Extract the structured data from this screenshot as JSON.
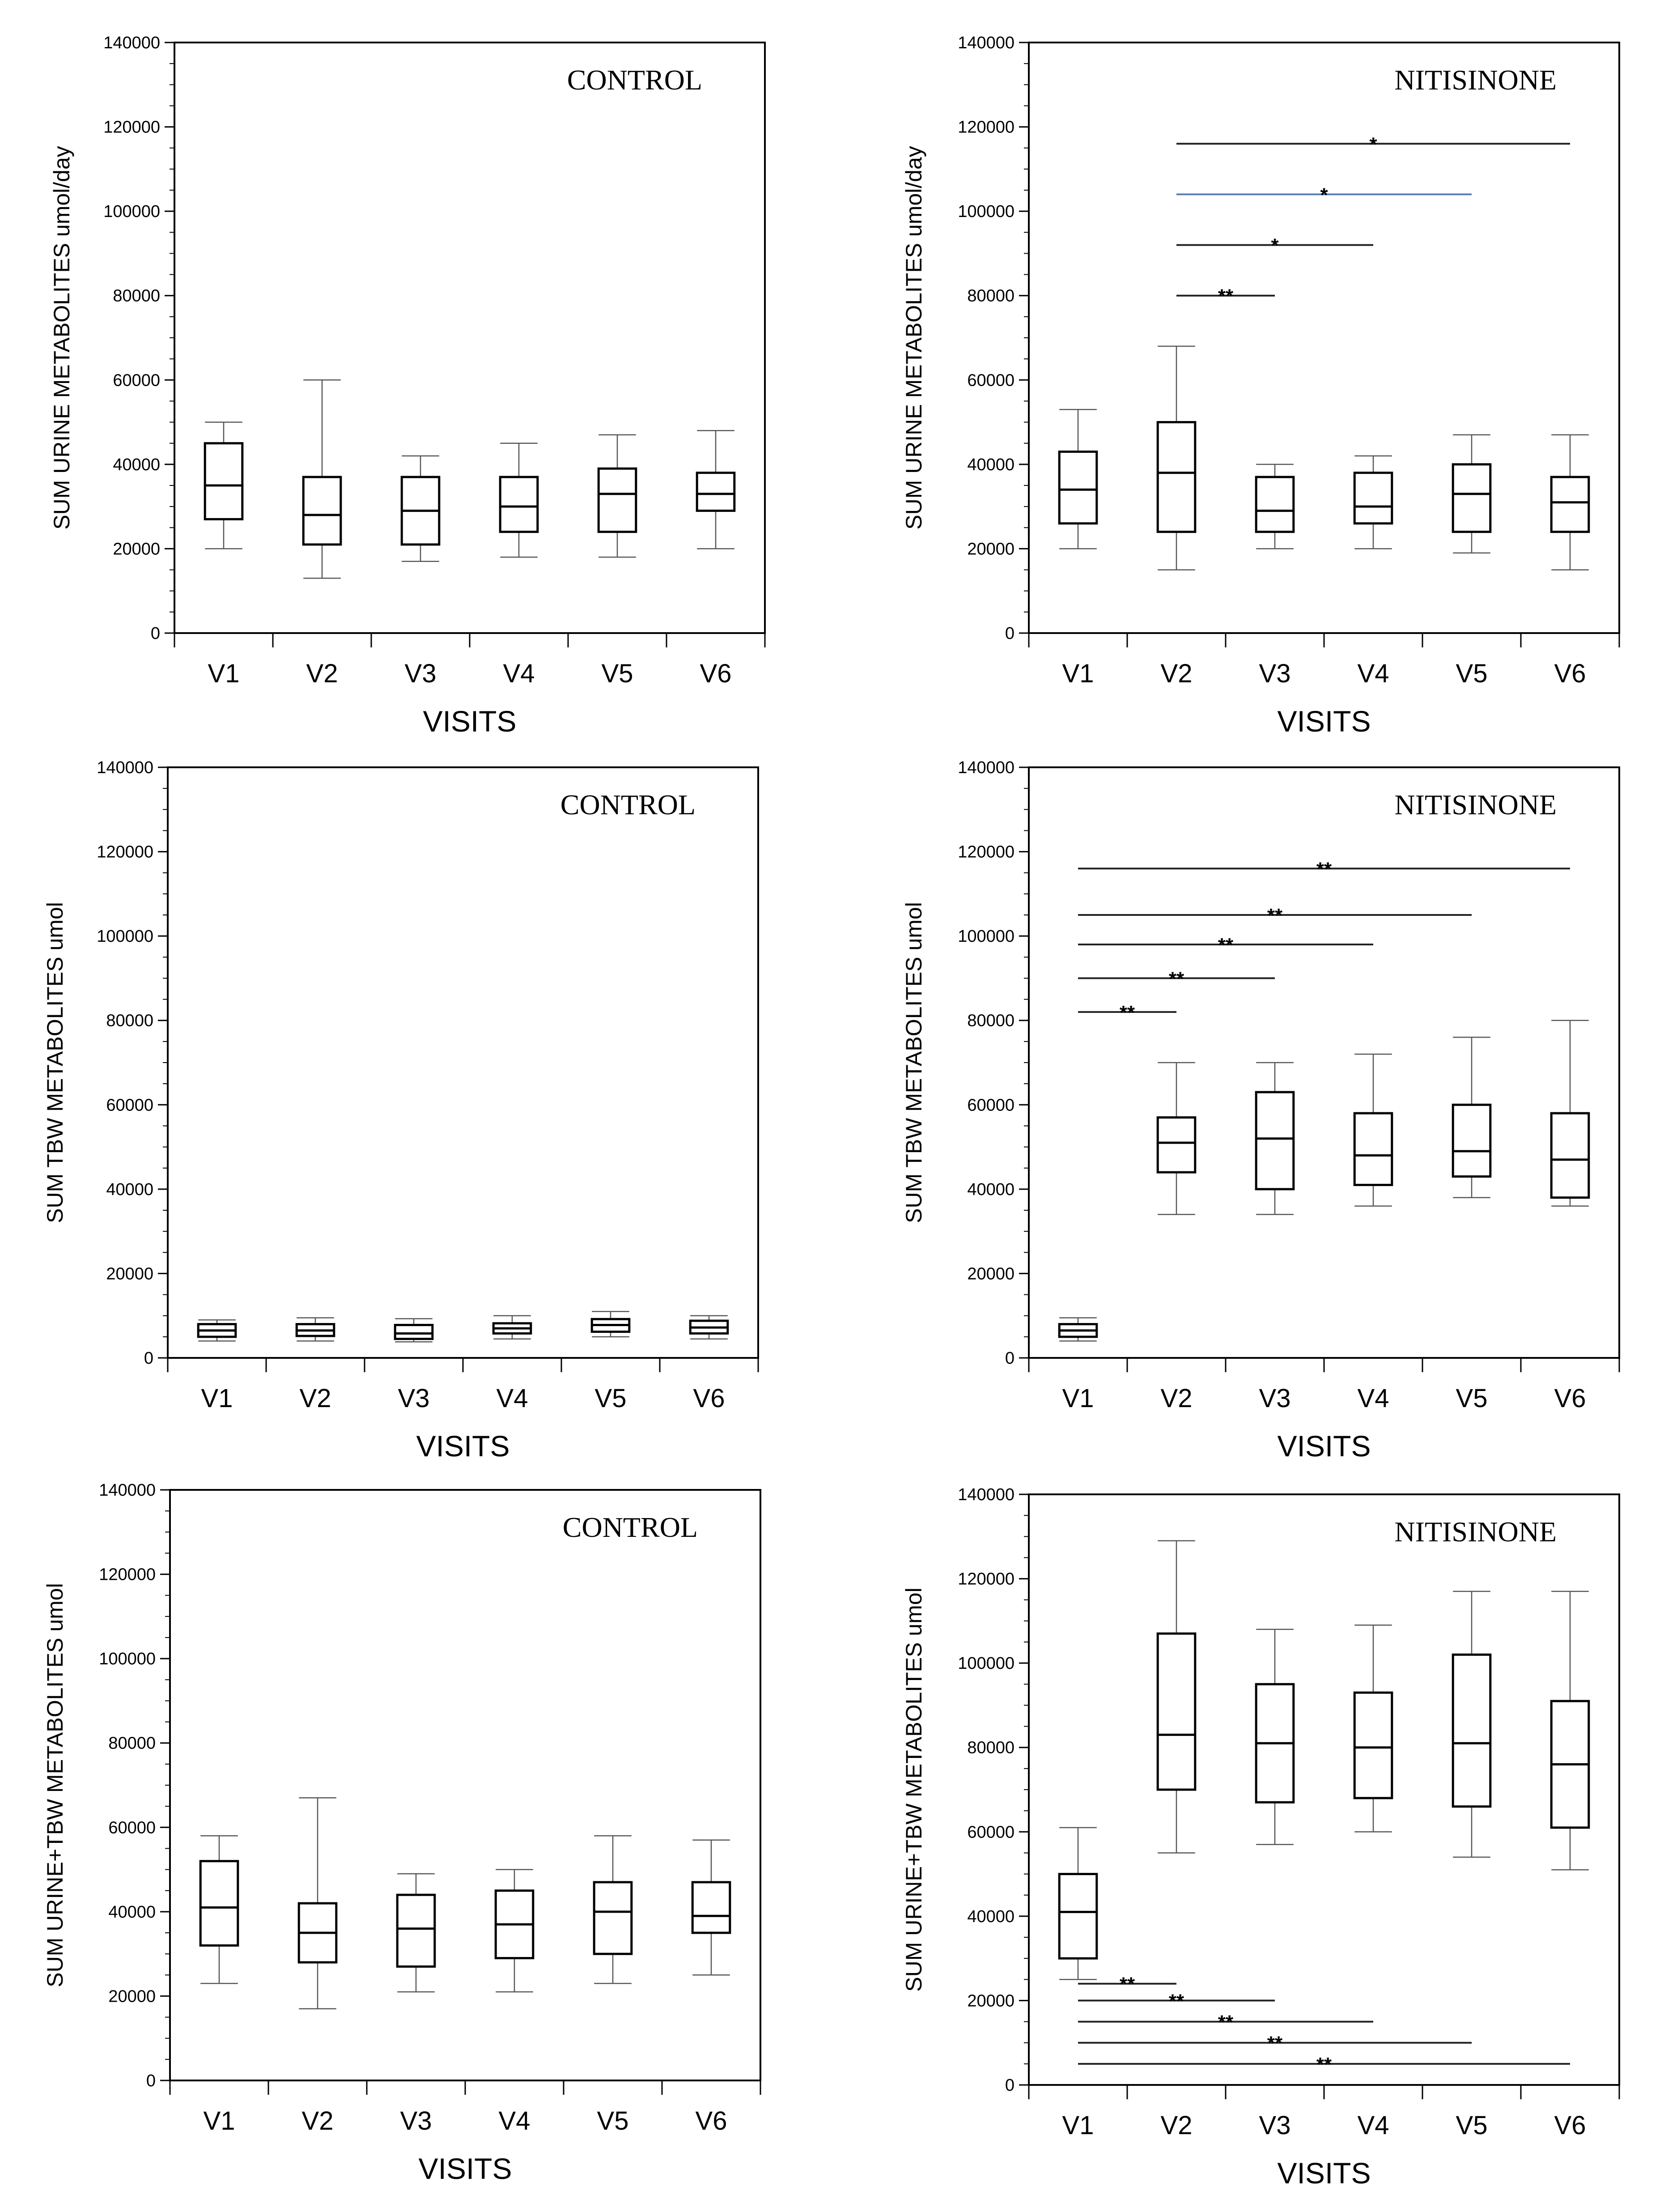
{
  "chart_data": [
    {
      "type": "boxplot",
      "title": "CONTROL",
      "xlabel": "VISITS",
      "ylabel": "SUM URINE METABOLITES  umol/day",
      "ylim": [
        0,
        140000
      ],
      "yticks": [
        "0",
        "20000",
        "40000",
        "60000",
        "80000",
        "100000",
        "120000",
        "140000"
      ],
      "categories": [
        "V1",
        "V2",
        "V3",
        "V4",
        "V5",
        "V6"
      ],
      "boxes": [
        {
          "min": 20000,
          "q1": 27000,
          "median": 35000,
          "q3": 45000,
          "max": 50000
        },
        {
          "min": 13000,
          "q1": 21000,
          "median": 28000,
          "q3": 37000,
          "max": 60000
        },
        {
          "min": 17000,
          "q1": 21000,
          "median": 29000,
          "q3": 37000,
          "max": 42000
        },
        {
          "min": 18000,
          "q1": 24000,
          "median": 30000,
          "q3": 37000,
          "max": 45000
        },
        {
          "min": 18000,
          "q1": 24000,
          "median": 33000,
          "q3": 39000,
          "max": 47000
        },
        {
          "min": 20000,
          "q1": 29000,
          "median": 33000,
          "q3": 38000,
          "max": 48000
        }
      ],
      "significance": []
    },
    {
      "type": "boxplot",
      "title": "NITISINONE",
      "xlabel": "VISITS",
      "ylabel": "SUM URINE METABOLITES  umol/day",
      "ylim": [
        0,
        140000
      ],
      "yticks": [
        "0",
        "20000",
        "40000",
        "60000",
        "80000",
        "100000",
        "120000",
        "140000"
      ],
      "categories": [
        "V1",
        "V2",
        "V3",
        "V4",
        "V5",
        "V6"
      ],
      "boxes": [
        {
          "min": 20000,
          "q1": 26000,
          "median": 34000,
          "q3": 43000,
          "max": 53000
        },
        {
          "min": 15000,
          "q1": 24000,
          "median": 38000,
          "q3": 50000,
          "max": 68000
        },
        {
          "min": 20000,
          "q1": 24000,
          "median": 29000,
          "q3": 37000,
          "max": 40000
        },
        {
          "min": 20000,
          "q1": 26000,
          "median": 30000,
          "q3": 38000,
          "max": 42000
        },
        {
          "min": 19000,
          "q1": 24000,
          "median": 33000,
          "q3": 40000,
          "max": 47000
        },
        {
          "min": 15000,
          "q1": 24000,
          "median": 31000,
          "q3": 37000,
          "max": 47000
        }
      ],
      "significance": [
        {
          "from": 1,
          "to": 5,
          "y": 116000,
          "label": "*",
          "color": "#222222"
        },
        {
          "from": 1,
          "to": 4,
          "y": 104000,
          "label": "*",
          "color": "#5a7fb0"
        },
        {
          "from": 1,
          "to": 3,
          "y": 92000,
          "label": "*",
          "color": "#222222"
        },
        {
          "from": 1,
          "to": 2,
          "y": 80000,
          "label": "**",
          "color": "#222222"
        }
      ]
    },
    {
      "type": "boxplot",
      "title": "CONTROL",
      "xlabel": "VISITS",
      "ylabel": "SUM TBW METABOLITES  umol",
      "ylim": [
        0,
        140000
      ],
      "yticks": [
        "0",
        "20000",
        "40000",
        "60000",
        "80000",
        "100000",
        "120000",
        "140000"
      ],
      "categories": [
        "V1",
        "V2",
        "V3",
        "V4",
        "V5",
        "V6"
      ],
      "boxes": [
        {
          "min": 4000,
          "q1": 5000,
          "median": 6500,
          "q3": 8000,
          "max": 9000
        },
        {
          "min": 4000,
          "q1": 5200,
          "median": 6500,
          "q3": 8000,
          "max": 9500
        },
        {
          "min": 3800,
          "q1": 4500,
          "median": 5800,
          "q3": 7800,
          "max": 9300
        },
        {
          "min": 4500,
          "q1": 5800,
          "median": 7000,
          "q3": 8200,
          "max": 10000
        },
        {
          "min": 5000,
          "q1": 6200,
          "median": 7800,
          "q3": 9200,
          "max": 11000
        },
        {
          "min": 4500,
          "q1": 5800,
          "median": 7200,
          "q3": 8800,
          "max": 10000
        }
      ],
      "significance": []
    },
    {
      "type": "boxplot",
      "title": "NITISINONE",
      "xlabel": "VISITS",
      "ylabel": "SUM TBW METABOLITES  umol",
      "ylim": [
        0,
        140000
      ],
      "yticks": [
        "0",
        "20000",
        "40000",
        "60000",
        "80000",
        "100000",
        "120000",
        "140000"
      ],
      "categories": [
        "V1",
        "V2",
        "V3",
        "V4",
        "V5",
        "V6"
      ],
      "boxes": [
        {
          "min": 4000,
          "q1": 5000,
          "median": 6500,
          "q3": 8000,
          "max": 9500
        },
        {
          "min": 34000,
          "q1": 44000,
          "median": 51000,
          "q3": 57000,
          "max": 70000
        },
        {
          "min": 34000,
          "q1": 40000,
          "median": 52000,
          "q3": 63000,
          "max": 70000
        },
        {
          "min": 36000,
          "q1": 41000,
          "median": 48000,
          "q3": 58000,
          "max": 72000
        },
        {
          "min": 38000,
          "q1": 43000,
          "median": 49000,
          "q3": 60000,
          "max": 76000
        },
        {
          "min": 36000,
          "q1": 38000,
          "median": 47000,
          "q3": 58000,
          "max": 80000
        }
      ],
      "significance": [
        {
          "from": 0,
          "to": 5,
          "y": 116000,
          "label": "**",
          "color": "#222222"
        },
        {
          "from": 0,
          "to": 4,
          "y": 105000,
          "label": "**",
          "color": "#222222"
        },
        {
          "from": 0,
          "to": 3,
          "y": 98000,
          "label": "**",
          "color": "#222222"
        },
        {
          "from": 0,
          "to": 2,
          "y": 90000,
          "label": "**",
          "color": "#222222"
        },
        {
          "from": 0,
          "to": 1,
          "y": 82000,
          "label": "**",
          "color": "#222222"
        }
      ]
    },
    {
      "type": "boxplot",
      "title": "CONTROL",
      "xlabel": "VISITS",
      "ylabel": "SUM URINE+TBW METABOLITES  umol",
      "ylim": [
        0,
        140000
      ],
      "yticks": [
        "0",
        "20000",
        "40000",
        "60000",
        "80000",
        "100000",
        "120000",
        "140000"
      ],
      "categories": [
        "V1",
        "V2",
        "V3",
        "V4",
        "V5",
        "V6"
      ],
      "boxes": [
        {
          "min": 23000,
          "q1": 32000,
          "median": 41000,
          "q3": 52000,
          "max": 58000
        },
        {
          "min": 17000,
          "q1": 28000,
          "median": 35000,
          "q3": 42000,
          "max": 67000
        },
        {
          "min": 21000,
          "q1": 27000,
          "median": 36000,
          "q3": 44000,
          "max": 49000
        },
        {
          "min": 21000,
          "q1": 29000,
          "median": 37000,
          "q3": 45000,
          "max": 50000
        },
        {
          "min": 23000,
          "q1": 30000,
          "median": 40000,
          "q3": 47000,
          "max": 58000
        },
        {
          "min": 25000,
          "q1": 35000,
          "median": 39000,
          "q3": 47000,
          "max": 57000
        }
      ],
      "significance": []
    },
    {
      "type": "boxplot",
      "title": "NITISINONE",
      "xlabel": "VISITS",
      "ylabel": "SUM URINE+TBW METABOLITES  umol",
      "ylim": [
        0,
        140000
      ],
      "yticks": [
        "0",
        "20000",
        "40000",
        "60000",
        "80000",
        "100000",
        "120000",
        "140000"
      ],
      "categories": [
        "V1",
        "V2",
        "V3",
        "V4",
        "V5",
        "V6"
      ],
      "boxes": [
        {
          "min": 25000,
          "q1": 30000,
          "median": 41000,
          "q3": 50000,
          "max": 61000
        },
        {
          "min": 55000,
          "q1": 70000,
          "median": 83000,
          "q3": 107000,
          "max": 129000
        },
        {
          "min": 57000,
          "q1": 67000,
          "median": 81000,
          "q3": 95000,
          "max": 108000
        },
        {
          "min": 60000,
          "q1": 68000,
          "median": 80000,
          "q3": 93000,
          "max": 109000
        },
        {
          "min": 54000,
          "q1": 66000,
          "median": 81000,
          "q3": 102000,
          "max": 117000
        },
        {
          "min": 51000,
          "q1": 61000,
          "median": 76000,
          "q3": 91000,
          "max": 117000
        }
      ],
      "significance": [
        {
          "from": 0,
          "to": 1,
          "y": 24000,
          "label": "**",
          "color": "#222222"
        },
        {
          "from": 0,
          "to": 2,
          "y": 20000,
          "label": "**",
          "color": "#222222"
        },
        {
          "from": 0,
          "to": 3,
          "y": 15000,
          "label": "**",
          "color": "#222222"
        },
        {
          "from": 0,
          "to": 4,
          "y": 10000,
          "label": "**",
          "color": "#222222"
        },
        {
          "from": 0,
          "to": 5,
          "y": 5000,
          "label": "**",
          "color": "#222222"
        }
      ]
    }
  ]
}
